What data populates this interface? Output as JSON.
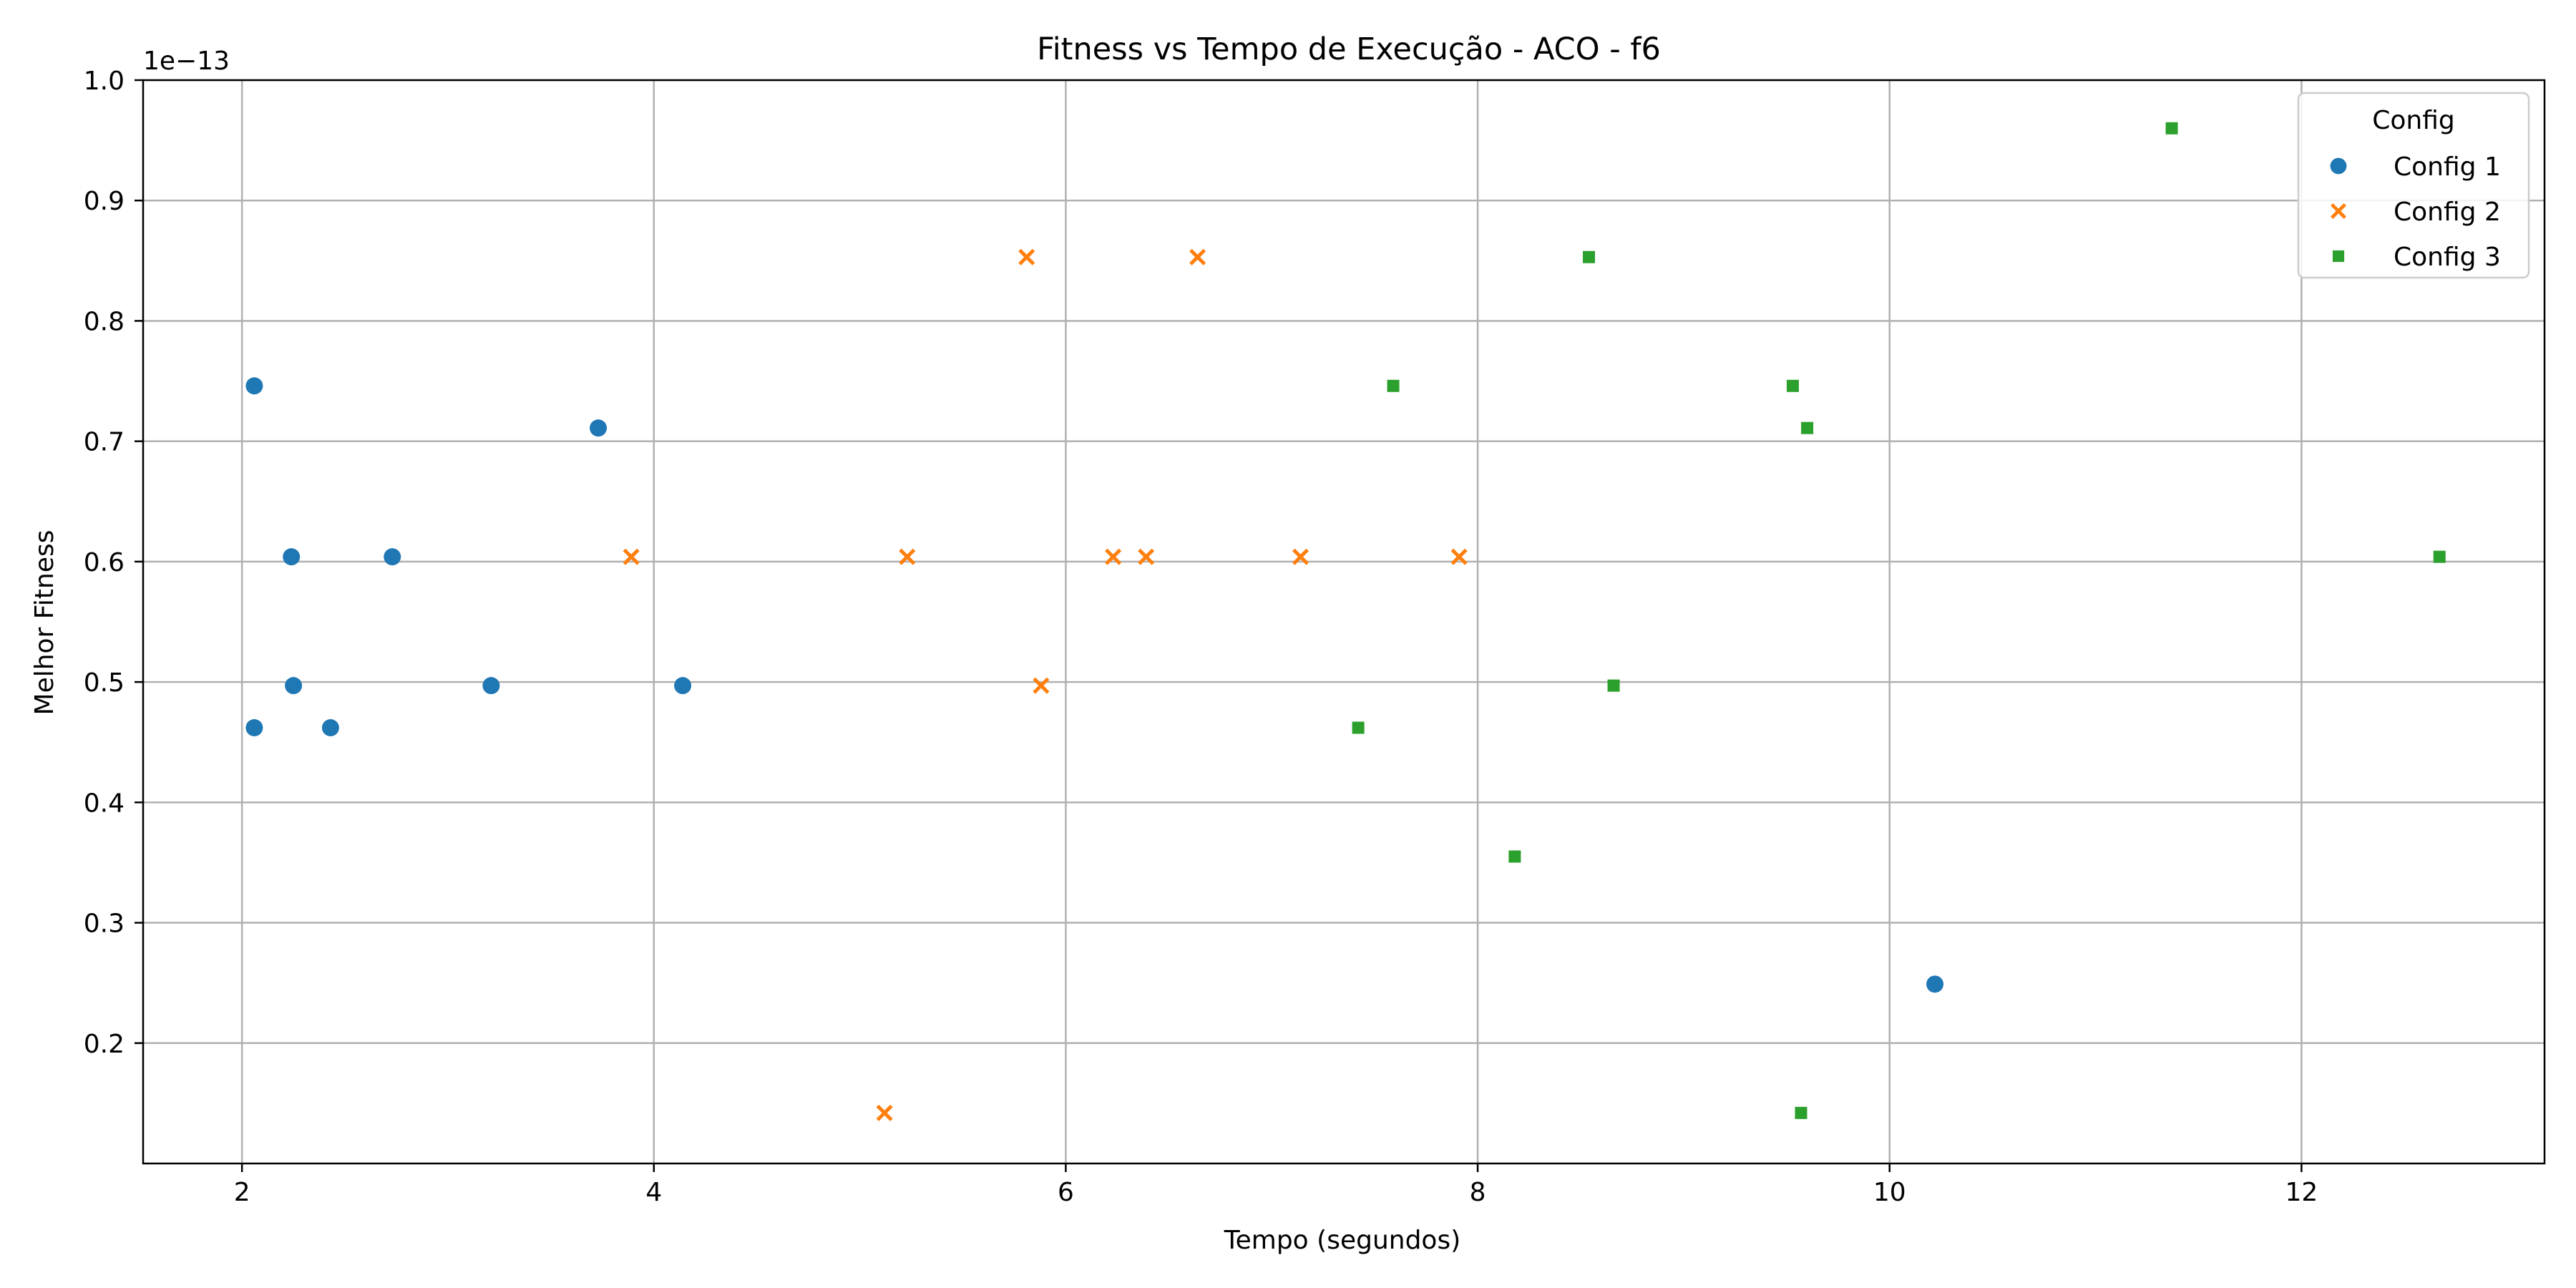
{
  "chart_data": {
    "type": "scatter",
    "title": "Fitness vs Tempo de Execução - ACO - f6",
    "xlabel": "Tempo (segundos)",
    "ylabel": "Melhor Fitness",
    "offset_text": "1e−13",
    "y_scale": 1e-13,
    "xlim": [
      1.52,
      13.18
    ],
    "ylim": [
      0.1,
      1.0
    ],
    "xticks": [
      2,
      4,
      6,
      8,
      10,
      12
    ],
    "yticks": [
      0.2,
      0.3,
      0.4,
      0.5,
      0.6,
      0.7,
      0.8,
      0.9,
      1.0
    ],
    "grid": true,
    "legend": {
      "title": "Config",
      "placement": "top-right"
    },
    "series": [
      {
        "name": "Config 1",
        "marker": "circle",
        "color": "#1f77b4",
        "points": [
          [
            2.06,
            0.746
          ],
          [
            2.06,
            0.462
          ],
          [
            2.24,
            0.604
          ],
          [
            2.25,
            0.497
          ],
          [
            2.43,
            0.462
          ],
          [
            2.73,
            0.604
          ],
          [
            3.21,
            0.497
          ],
          [
            3.73,
            0.711
          ],
          [
            4.14,
            0.497
          ],
          [
            10.22,
            0.249
          ]
        ]
      },
      {
        "name": "Config 2",
        "marker": "x",
        "color": "#ff7f0e",
        "points": [
          [
            3.89,
            0.604
          ],
          [
            5.12,
            0.142
          ],
          [
            5.23,
            0.604
          ],
          [
            5.81,
            0.853
          ],
          [
            5.88,
            0.497
          ],
          [
            6.23,
            0.604
          ],
          [
            6.39,
            0.604
          ],
          [
            6.64,
            0.853
          ],
          [
            7.14,
            0.604
          ],
          [
            7.91,
            0.604
          ]
        ]
      },
      {
        "name": "Config 3",
        "marker": "square",
        "color": "#2ca02c",
        "points": [
          [
            7.42,
            0.462
          ],
          [
            7.59,
            0.746
          ],
          [
            8.18,
            0.355
          ],
          [
            8.54,
            0.853
          ],
          [
            8.66,
            0.497
          ],
          [
            9.53,
            0.746
          ],
          [
            9.57,
            0.142
          ],
          [
            9.6,
            0.711
          ],
          [
            11.37,
            0.96
          ],
          [
            12.67,
            0.604
          ]
        ]
      }
    ]
  }
}
